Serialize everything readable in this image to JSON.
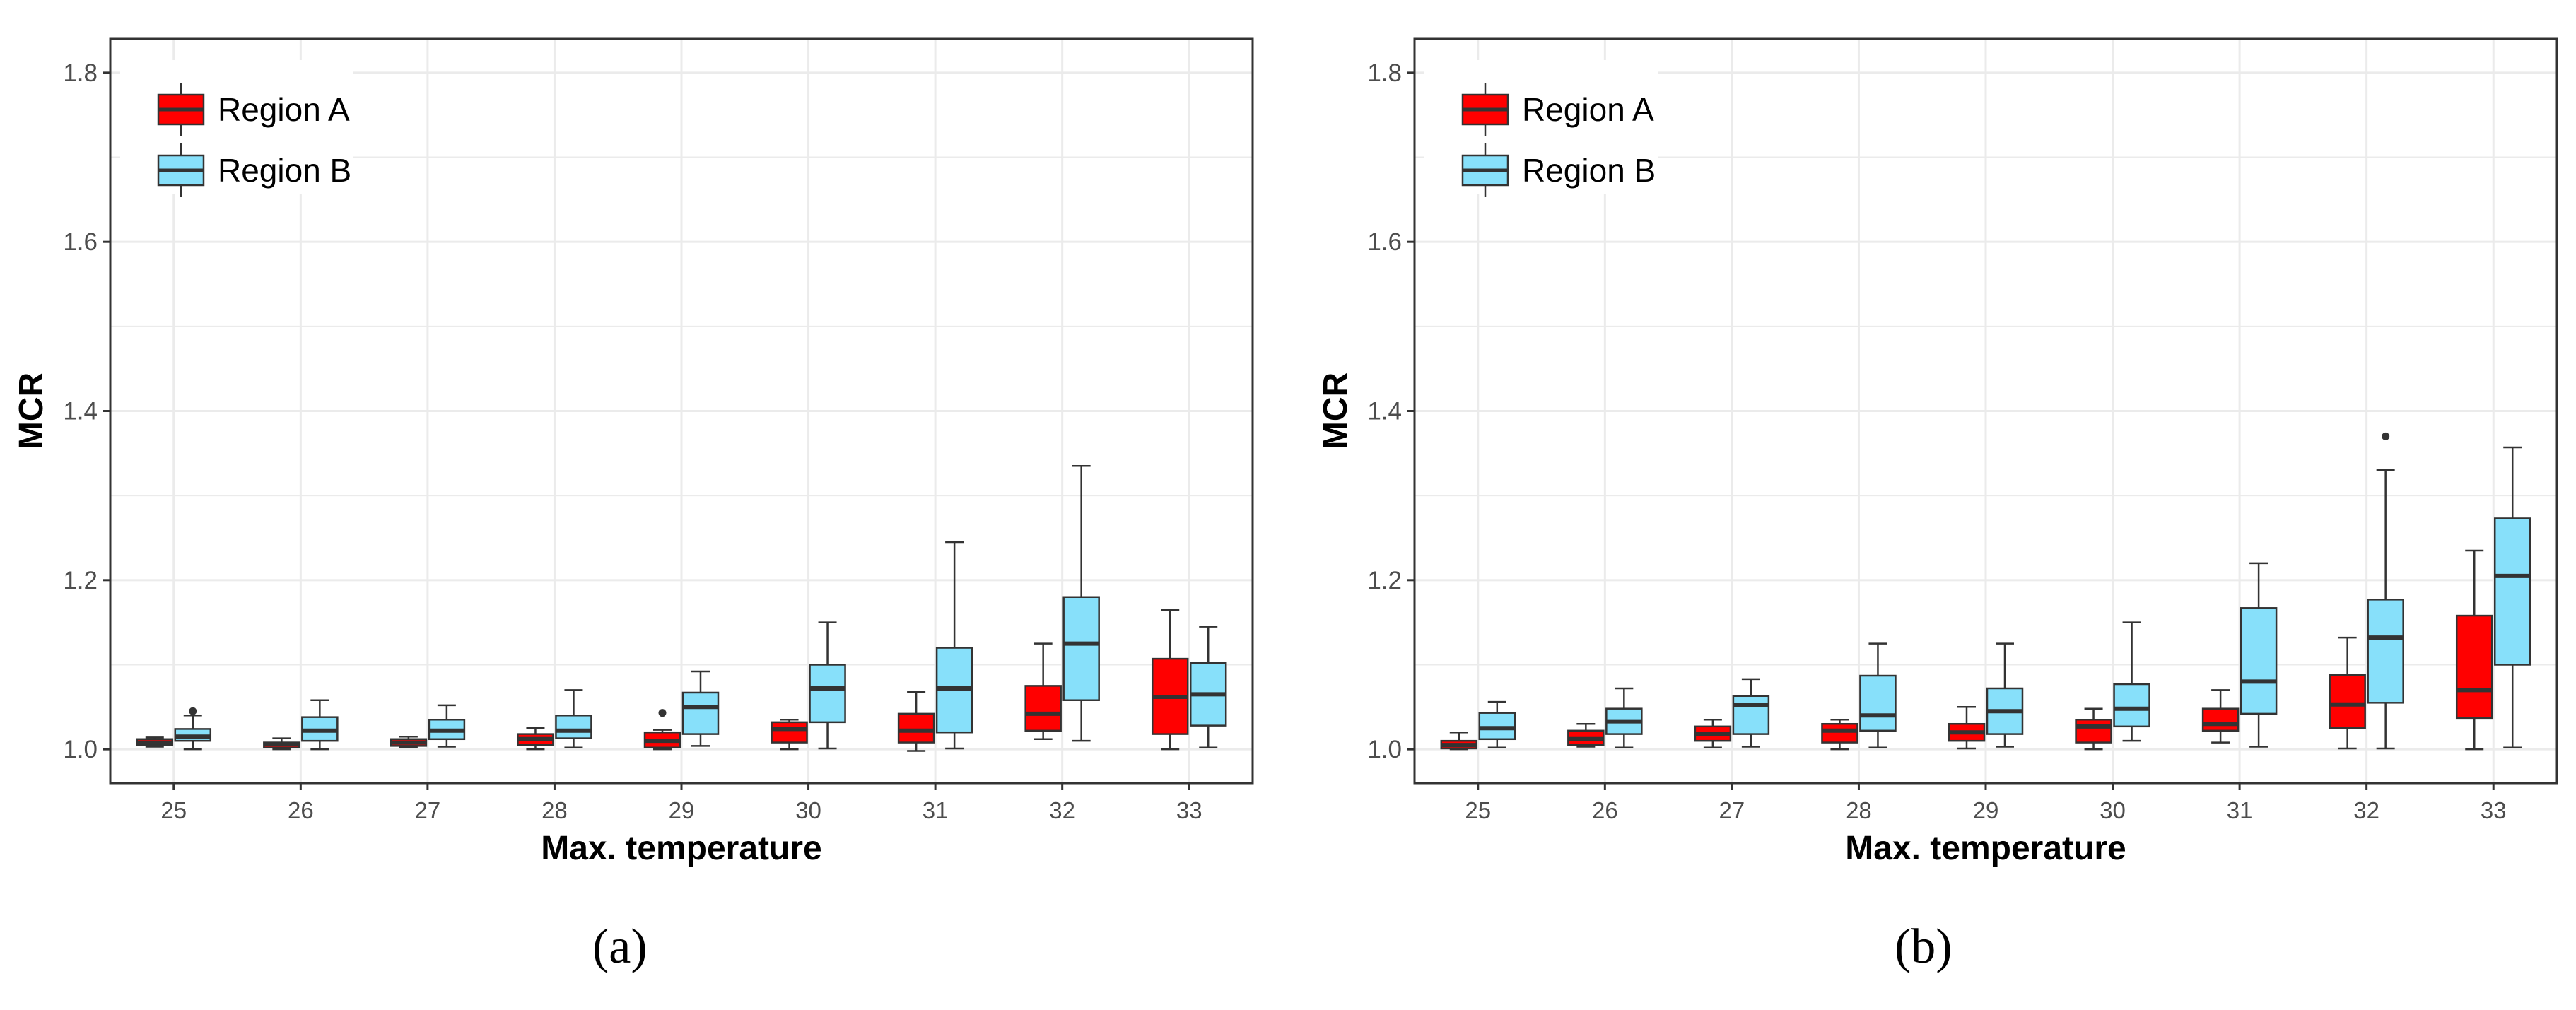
{
  "colors": {
    "region_a": "#ff0000",
    "region_b": "#87e0fa",
    "grid": "#ebebeb",
    "axis_text": "#4d4d4d"
  },
  "chart_data": [
    {
      "type": "boxplot",
      "panel_label": "(a)",
      "xlabel": "Max. temperature",
      "ylabel": "MCR",
      "categories": [
        "25",
        "26",
        "27",
        "28",
        "29",
        "30",
        "31",
        "32",
        "33"
      ],
      "ylim": [
        0.96,
        1.84
      ],
      "yticks": [
        "1.0",
        "1.2",
        "1.4",
        "1.6",
        "1.8"
      ],
      "grid": true,
      "legend_position": "top-left",
      "series": [
        {
          "name": "Region A",
          "boxes": [
            {
              "min": 1.003,
              "q1": 1.005,
              "median": 1.008,
              "q3": 1.012,
              "max": 1.014,
              "outliers": []
            },
            {
              "min": 1.0,
              "q1": 1.002,
              "median": 1.006,
              "q3": 1.008,
              "max": 1.013,
              "outliers": []
            },
            {
              "min": 1.002,
              "q1": 1.004,
              "median": 1.008,
              "q3": 1.012,
              "max": 1.015,
              "outliers": []
            },
            {
              "min": 1.0,
              "q1": 1.005,
              "median": 1.012,
              "q3": 1.018,
              "max": 1.025,
              "outliers": []
            },
            {
              "min": 1.0,
              "q1": 1.002,
              "median": 1.01,
              "q3": 1.02,
              "max": 1.023,
              "outliers": [
                1.043
              ]
            },
            {
              "min": 1.0,
              "q1": 1.008,
              "median": 1.024,
              "q3": 1.032,
              "max": 1.035,
              "outliers": []
            },
            {
              "min": 0.998,
              "q1": 1.008,
              "median": 1.022,
              "q3": 1.042,
              "max": 1.068,
              "outliers": []
            },
            {
              "min": 1.012,
              "q1": 1.022,
              "median": 1.042,
              "q3": 1.075,
              "max": 1.125,
              "outliers": []
            },
            {
              "min": 1.0,
              "q1": 1.018,
              "median": 1.062,
              "q3": 1.107,
              "max": 1.165,
              "outliers": []
            }
          ]
        },
        {
          "name": "Region B",
          "boxes": [
            {
              "min": 1.0,
              "q1": 1.01,
              "median": 1.015,
              "q3": 1.024,
              "max": 1.04,
              "outliers": [
                1.045
              ]
            },
            {
              "min": 1.0,
              "q1": 1.01,
              "median": 1.022,
              "q3": 1.038,
              "max": 1.058,
              "outliers": []
            },
            {
              "min": 1.003,
              "q1": 1.012,
              "median": 1.022,
              "q3": 1.035,
              "max": 1.052,
              "outliers": []
            },
            {
              "min": 1.002,
              "q1": 1.013,
              "median": 1.022,
              "q3": 1.04,
              "max": 1.07,
              "outliers": []
            },
            {
              "min": 1.004,
              "q1": 1.018,
              "median": 1.05,
              "q3": 1.067,
              "max": 1.092,
              "outliers": []
            },
            {
              "min": 1.001,
              "q1": 1.032,
              "median": 1.072,
              "q3": 1.1,
              "max": 1.15,
              "outliers": []
            },
            {
              "min": 1.001,
              "q1": 1.02,
              "median": 1.072,
              "q3": 1.12,
              "max": 1.245,
              "outliers": []
            },
            {
              "min": 1.01,
              "q1": 1.058,
              "median": 1.125,
              "q3": 1.18,
              "max": 1.335,
              "outliers": []
            },
            {
              "min": 1.002,
              "q1": 1.028,
              "median": 1.065,
              "q3": 1.102,
              "max": 1.145,
              "outliers": []
            }
          ]
        }
      ]
    },
    {
      "type": "boxplot",
      "panel_label": "(b)",
      "xlabel": "Max. temperature",
      "ylabel": "MCR",
      "categories": [
        "25",
        "26",
        "27",
        "28",
        "29",
        "30",
        "31",
        "32",
        "33"
      ],
      "ylim": [
        0.96,
        1.84
      ],
      "yticks": [
        "1.0",
        "1.2",
        "1.4",
        "1.6",
        "1.8"
      ],
      "grid": true,
      "legend_position": "top-left",
      "series": [
        {
          "name": "Region A",
          "boxes": [
            {
              "min": 1.0,
              "q1": 1.001,
              "median": 1.005,
              "q3": 1.01,
              "max": 1.02,
              "outliers": []
            },
            {
              "min": 1.003,
              "q1": 1.005,
              "median": 1.012,
              "q3": 1.022,
              "max": 1.03,
              "outliers": []
            },
            {
              "min": 1.002,
              "q1": 1.01,
              "median": 1.018,
              "q3": 1.027,
              "max": 1.035,
              "outliers": []
            },
            {
              "min": 1.0,
              "q1": 1.008,
              "median": 1.022,
              "q3": 1.03,
              "max": 1.035,
              "outliers": []
            },
            {
              "min": 1.001,
              "q1": 1.01,
              "median": 1.02,
              "q3": 1.03,
              "max": 1.05,
              "outliers": []
            },
            {
              "min": 1.0,
              "q1": 1.008,
              "median": 1.027,
              "q3": 1.035,
              "max": 1.048,
              "outliers": []
            },
            {
              "min": 1.008,
              "q1": 1.022,
              "median": 1.03,
              "q3": 1.048,
              "max": 1.07,
              "outliers": []
            },
            {
              "min": 1.001,
              "q1": 1.025,
              "median": 1.053,
              "q3": 1.088,
              "max": 1.132,
              "outliers": []
            },
            {
              "min": 1.0,
              "q1": 1.037,
              "median": 1.07,
              "q3": 1.158,
              "max": 1.235,
              "outliers": []
            }
          ]
        },
        {
          "name": "Region B",
          "boxes": [
            {
              "min": 1.002,
              "q1": 1.012,
              "median": 1.025,
              "q3": 1.043,
              "max": 1.056,
              "outliers": []
            },
            {
              "min": 1.002,
              "q1": 1.018,
              "median": 1.033,
              "q3": 1.048,
              "max": 1.072,
              "outliers": []
            },
            {
              "min": 1.003,
              "q1": 1.018,
              "median": 1.052,
              "q3": 1.063,
              "max": 1.083,
              "outliers": []
            },
            {
              "min": 1.002,
              "q1": 1.022,
              "median": 1.04,
              "q3": 1.087,
              "max": 1.125,
              "outliers": []
            },
            {
              "min": 1.003,
              "q1": 1.018,
              "median": 1.045,
              "q3": 1.072,
              "max": 1.125,
              "outliers": []
            },
            {
              "min": 1.01,
              "q1": 1.027,
              "median": 1.048,
              "q3": 1.077,
              "max": 1.15,
              "outliers": []
            },
            {
              "min": 1.003,
              "q1": 1.042,
              "median": 1.08,
              "q3": 1.167,
              "max": 1.22,
              "outliers": []
            },
            {
              "min": 1.001,
              "q1": 1.055,
              "median": 1.132,
              "q3": 1.177,
              "max": 1.33,
              "outliers": [
                1.37
              ]
            },
            {
              "min": 1.002,
              "q1": 1.1,
              "median": 1.205,
              "q3": 1.273,
              "max": 1.357,
              "outliers": []
            }
          ]
        }
      ]
    }
  ]
}
